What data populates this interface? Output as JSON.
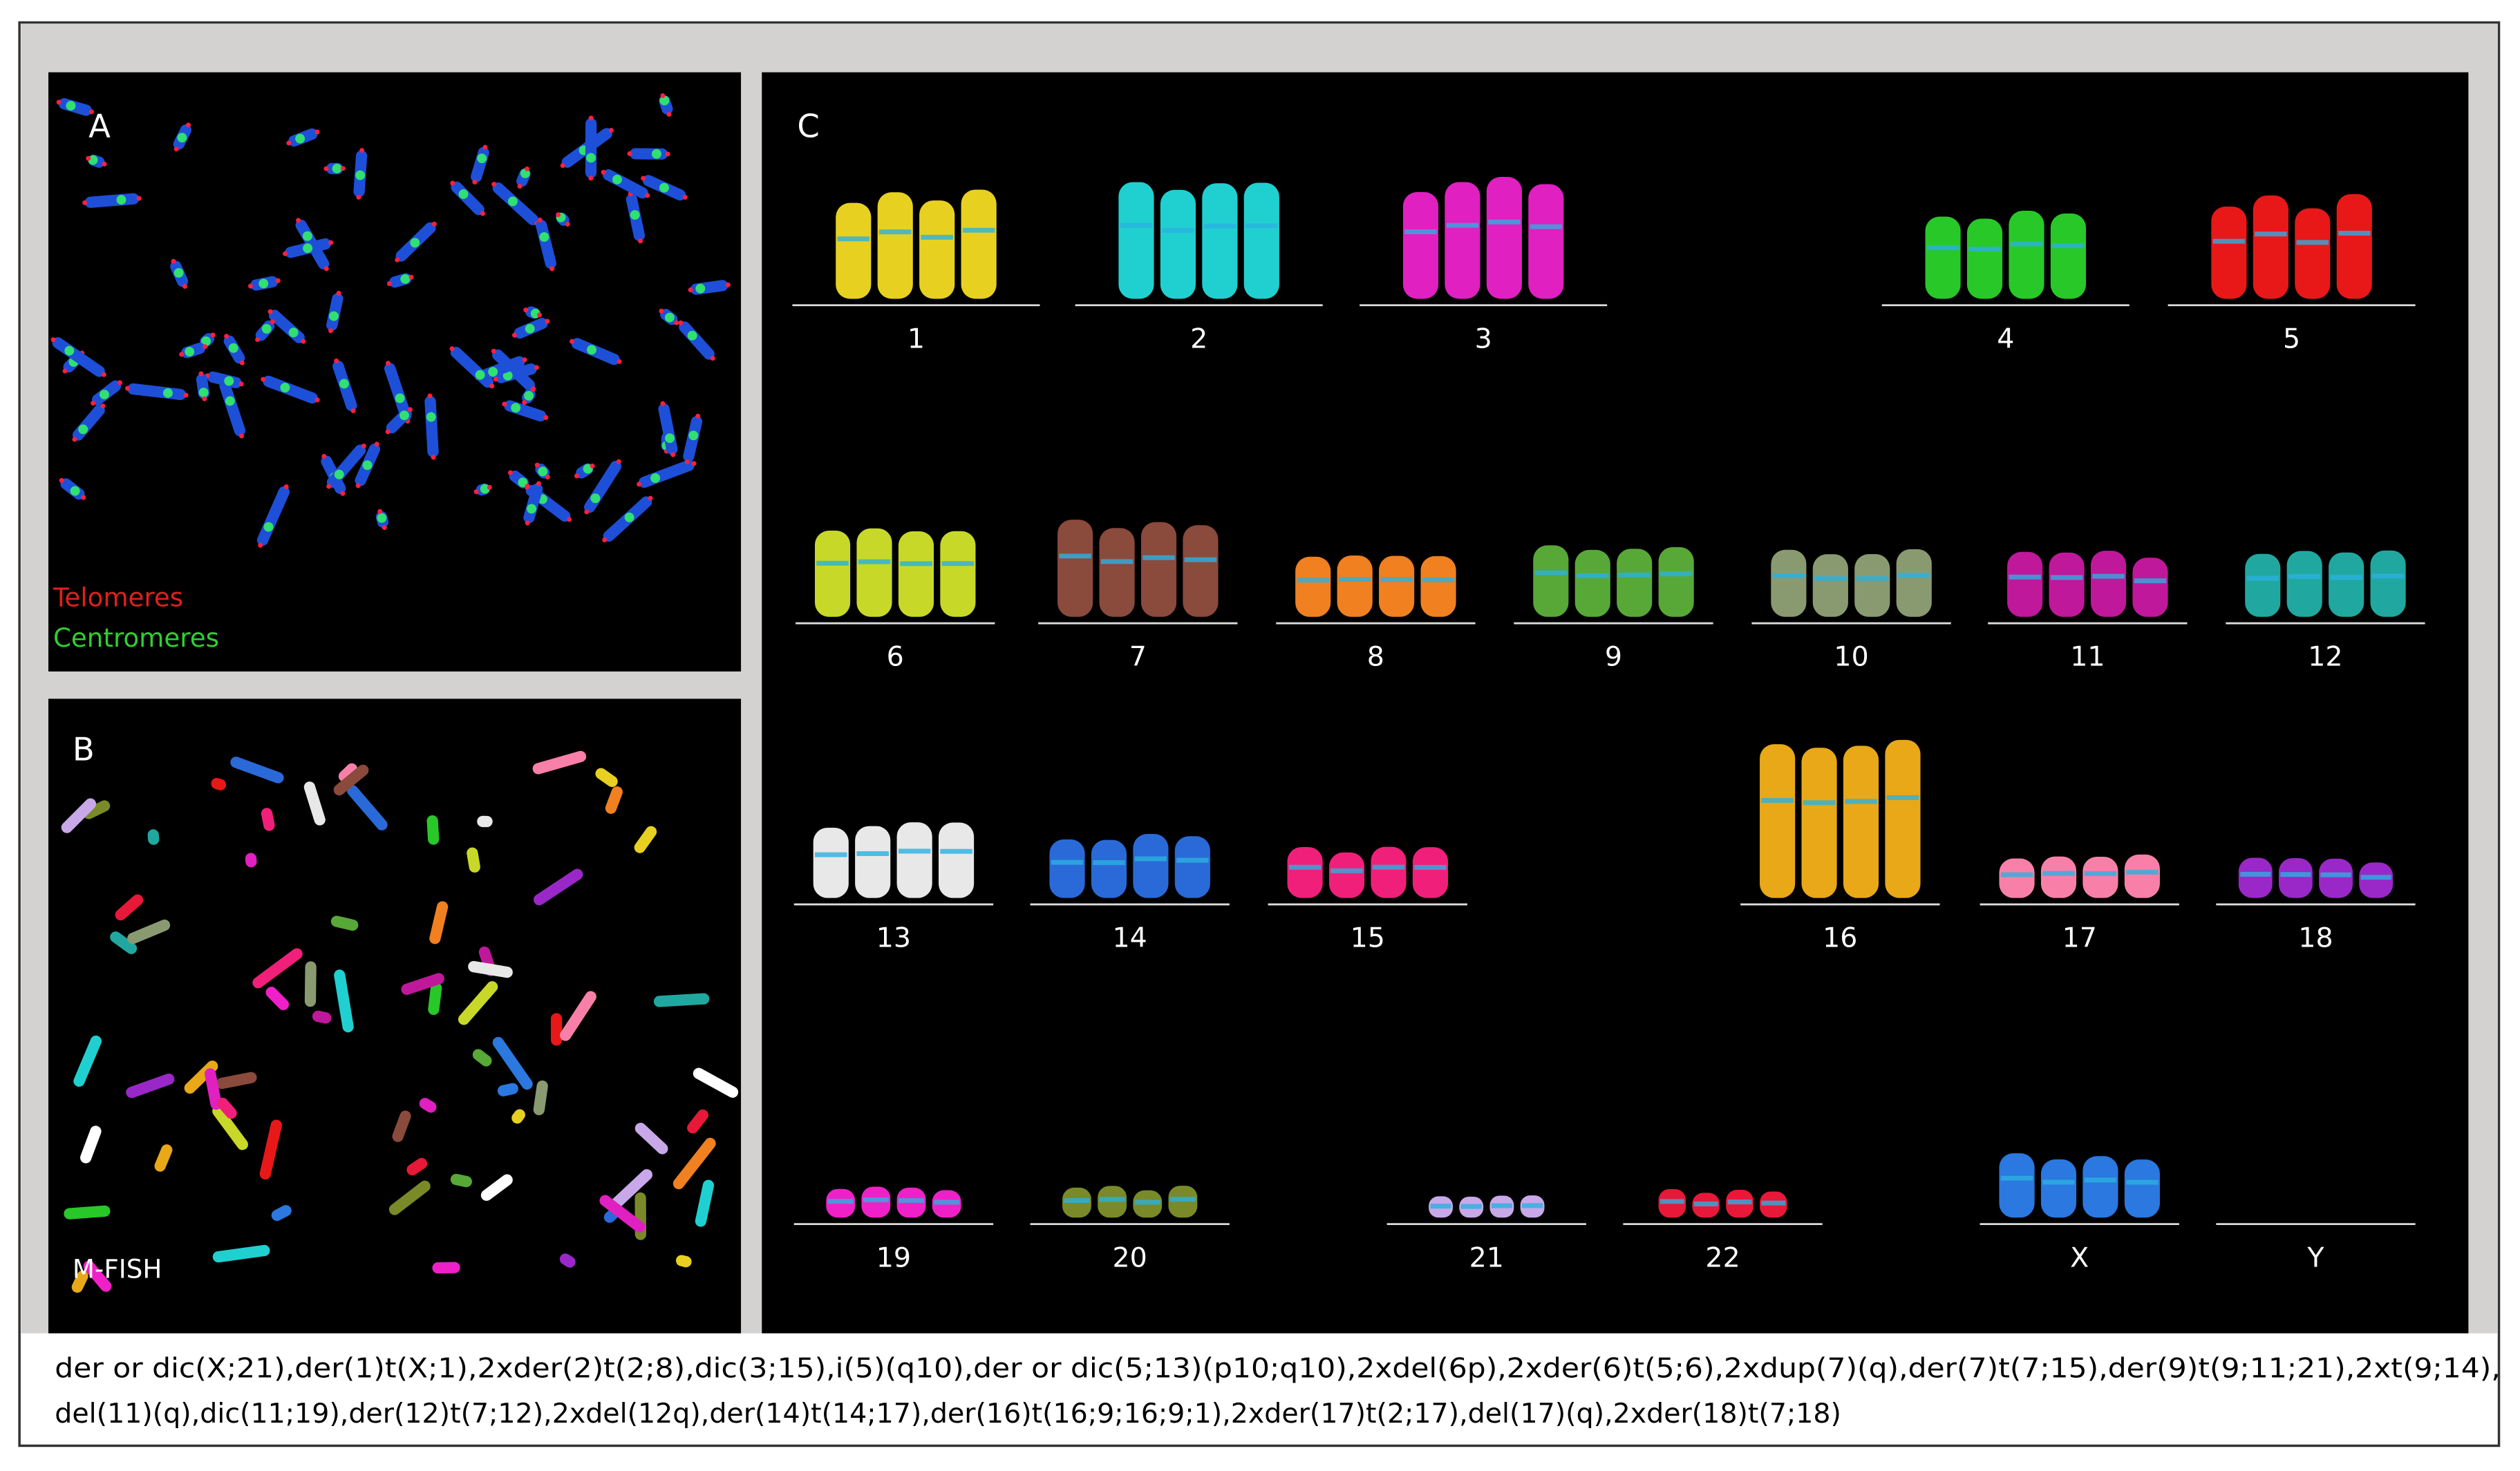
{
  "panels": {
    "a": {
      "label": "A",
      "legend": [
        "Telomeres",
        "Centromeres"
      ]
    },
    "b": {
      "label": "B",
      "caption": "M-FISH"
    },
    "c": {
      "label": "C",
      "chromosomes": [
        "1",
        "2",
        "3",
        "4",
        "5",
        "6",
        "7",
        "8",
        "9",
        "10",
        "11",
        "12",
        "13",
        "14",
        "15",
        "16",
        "17",
        "18",
        "19",
        "20",
        "21",
        "22",
        "X",
        "Y"
      ]
    }
  },
  "caption": [
    "der or dic(X;21),der(1)t(X;1),2xder(2)t(2;8),dic(3;15),i(5)(q10),der or dic(5;13)(p10;q10),2xdel(6p),2xder(6)t(5;6),2xdup(7)(q),der(7)t(7;15),der(9)t(9;11;21),2xt(9;14),",
    "del(11)(q),dic(11;19),der(12)t(7;12),2xdel(12q),der(14)t(14;17),der(16)t(16;9;16;9;1),2xder(17)t(2;17),del(17)(q),2xder(18)t(7;18)"
  ]
}
